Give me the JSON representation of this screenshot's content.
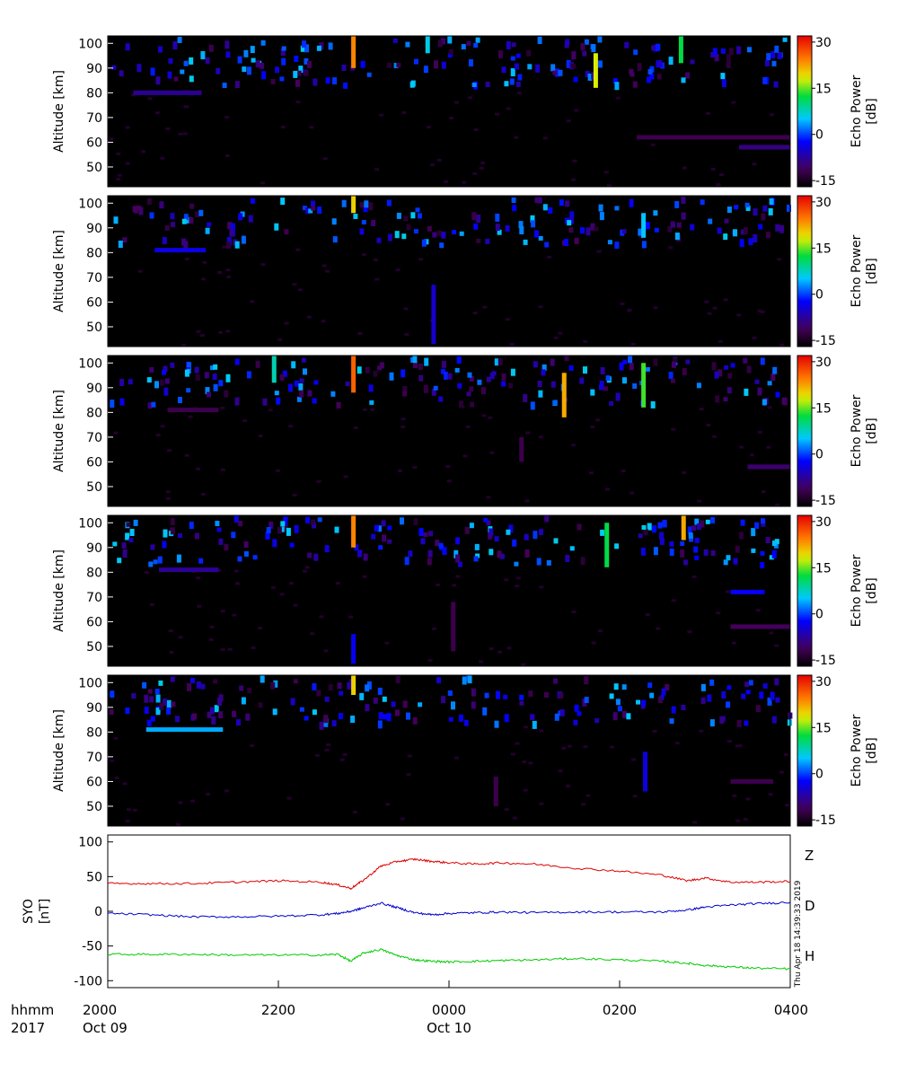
{
  "chart_data": {
    "type": "heatmap",
    "panels": [
      {
        "ylabel": "Altitude [km]",
        "yticks": [
          "100",
          "90",
          "80",
          "70",
          "60",
          "50"
        ],
        "ytick_values": [
          100,
          90,
          80,
          70,
          60,
          50
        ],
        "ylim": [
          42,
          103
        ],
        "colorbar_label": [
          "Echo Power",
          "[dB]"
        ],
        "colorbar_ticks": [
          "30",
          "15",
          "0",
          "-15"
        ],
        "colorbar_values": [
          30,
          15,
          0,
          -15
        ],
        "clim": [
          -17,
          32
        ],
        "layers": [
          {
            "alt": 80,
            "t0": 0.3,
            "t1": 1.1,
            "level": -8
          },
          {
            "alt": 62,
            "t0": 6.2,
            "t1": 8.0,
            "level": -12
          },
          {
            "alt": 58,
            "t0": 7.4,
            "t1": 8.0,
            "level": -9
          }
        ],
        "columns": [
          {
            "t": 2.88,
            "a0": 90,
            "a1": 103,
            "level": 24
          },
          {
            "t": 3.75,
            "a0": 96,
            "a1": 103,
            "level": 6
          },
          {
            "t": 5.72,
            "a0": 82,
            "a1": 96,
            "level": 18
          },
          {
            "t": 6.72,
            "a0": 92,
            "a1": 103,
            "level": 12
          }
        ]
      },
      {
        "ylabel": "Altitude [km]",
        "yticks": [
          "100",
          "90",
          "80",
          "70",
          "60",
          "50"
        ],
        "ytick_values": [
          100,
          90,
          80,
          70,
          60,
          50
        ],
        "ylim": [
          42,
          103
        ],
        "colorbar_label": [
          "Echo Power",
          "[dB]"
        ],
        "colorbar_ticks": [
          "30",
          "15",
          "0",
          "-15"
        ],
        "colorbar_values": [
          30,
          15,
          0,
          -15
        ],
        "clim": [
          -17,
          32
        ],
        "layers": [
          {
            "alt": 81,
            "t0": 0.55,
            "t1": 1.15,
            "level": -4
          }
        ],
        "columns": [
          {
            "t": 3.82,
            "a0": 43,
            "a1": 67,
            "level": -5
          },
          {
            "t": 2.88,
            "a0": 96,
            "a1": 103,
            "level": 20
          },
          {
            "t": 6.28,
            "a0": 86,
            "a1": 96,
            "level": 5
          }
        ]
      },
      {
        "ylabel": "Altitude [km]",
        "yticks": [
          "100",
          "90",
          "80",
          "70",
          "60",
          "50"
        ],
        "ytick_values": [
          100,
          90,
          80,
          70,
          60,
          50
        ],
        "ylim": [
          42,
          103
        ],
        "colorbar_label": [
          "Echo Power",
          "[dB]"
        ],
        "colorbar_ticks": [
          "30",
          "15",
          "0",
          "-15"
        ],
        "colorbar_values": [
          30,
          15,
          0,
          -15
        ],
        "clim": [
          -17,
          32
        ],
        "layers": [
          {
            "alt": 81,
            "t0": 0.7,
            "t1": 1.3,
            "level": -12
          },
          {
            "alt": 58,
            "t0": 7.5,
            "t1": 8.0,
            "level": -10
          }
        ],
        "columns": [
          {
            "t": 2.88,
            "a0": 88,
            "a1": 103,
            "level": 26
          },
          {
            "t": 5.35,
            "a0": 78,
            "a1": 96,
            "level": 22
          },
          {
            "t": 4.85,
            "a0": 60,
            "a1": 70,
            "level": -12
          },
          {
            "t": 6.28,
            "a0": 82,
            "a1": 100,
            "level": 14
          },
          {
            "t": 1.95,
            "a0": 92,
            "a1": 103,
            "level": 8
          }
        ]
      },
      {
        "ylabel": "Altitude [km]",
        "yticks": [
          "100",
          "90",
          "80",
          "70",
          "60",
          "50"
        ],
        "ytick_values": [
          100,
          90,
          80,
          70,
          60,
          50
        ],
        "ylim": [
          42,
          103
        ],
        "colorbar_label": [
          "Echo Power",
          "[dB]"
        ],
        "colorbar_ticks": [
          "30",
          "15",
          "0",
          "-15"
        ],
        "colorbar_values": [
          30,
          15,
          0,
          -15
        ],
        "clim": [
          -17,
          32
        ],
        "layers": [
          {
            "alt": 81,
            "t0": 0.6,
            "t1": 1.3,
            "level": -8
          },
          {
            "alt": 72,
            "t0": 7.3,
            "t1": 7.7,
            "level": -3
          },
          {
            "alt": 58,
            "t0": 7.3,
            "t1": 8.0,
            "level": -11
          }
        ],
        "columns": [
          {
            "t": 2.88,
            "a0": 90,
            "a1": 103,
            "level": 24
          },
          {
            "t": 2.88,
            "a0": 43,
            "a1": 55,
            "level": -3
          },
          {
            "t": 6.75,
            "a0": 93,
            "a1": 103,
            "level": 22
          },
          {
            "t": 5.85,
            "a0": 82,
            "a1": 100,
            "level": 12
          },
          {
            "t": 4.05,
            "a0": 48,
            "a1": 68,
            "level": -12
          }
        ]
      },
      {
        "ylabel": "Altitude [km]",
        "yticks": [
          "100",
          "90",
          "80",
          "70",
          "60",
          "50"
        ],
        "ytick_values": [
          100,
          90,
          80,
          70,
          60,
          50
        ],
        "ylim": [
          42,
          103
        ],
        "colorbar_label": [
          "Echo Power",
          "[dB]"
        ],
        "colorbar_ticks": [
          "30",
          "15",
          "0",
          "-15"
        ],
        "colorbar_values": [
          30,
          15,
          0,
          -15
        ],
        "clim": [
          -17,
          32
        ],
        "layers": [
          {
            "alt": 81,
            "t0": 0.45,
            "t1": 1.35,
            "level": 4
          },
          {
            "alt": 60,
            "t0": 7.3,
            "t1": 7.8,
            "level": -12
          }
        ],
        "columns": [
          {
            "t": 6.3,
            "a0": 56,
            "a1": 72,
            "level": -4
          },
          {
            "t": 2.88,
            "a0": 95,
            "a1": 103,
            "level": 20
          },
          {
            "t": 4.55,
            "a0": 50,
            "a1": 62,
            "level": -12
          }
        ]
      }
    ],
    "magnetometer": {
      "ylabel": [
        "SYO",
        "[nT]"
      ],
      "yticks": [
        "100",
        "50",
        "0",
        "-50",
        "-100"
      ],
      "ytick_values": [
        100,
        50,
        0,
        -50,
        -100
      ],
      "ylim": [
        -110,
        110
      ],
      "series": [
        {
          "name": "Z",
          "color": "#dd0000",
          "t": [
            0,
            0.5,
            1,
            1.5,
            2,
            2.5,
            2.7,
            2.85,
            3.0,
            3.2,
            3.4,
            3.6,
            3.8,
            4.0,
            4.3,
            4.6,
            5.0,
            5.5,
            6.0,
            6.5,
            6.8,
            7.0,
            7.3,
            7.6,
            8.0
          ],
          "values": [
            40,
            40,
            40,
            42,
            44,
            42,
            38,
            33,
            45,
            65,
            72,
            75,
            72,
            70,
            68,
            70,
            68,
            62,
            58,
            52,
            44,
            48,
            42,
            42,
            43
          ]
        },
        {
          "name": "D",
          "color": "#00cc00",
          "t": [
            0,
            0.5,
            1,
            1.5,
            2,
            2.5,
            2.7,
            2.85,
            3.0,
            3.2,
            3.4,
            3.6,
            3.8,
            4.0,
            4.3,
            4.6,
            5.0,
            5.5,
            6.0,
            6.5,
            6.8,
            7.0,
            7.3,
            7.6,
            8.0
          ],
          "values": [
            -62,
            -62,
            -62,
            -63,
            -63,
            -63,
            -62,
            -72,
            -60,
            -55,
            -64,
            -70,
            -72,
            -73,
            -72,
            -71,
            -70,
            -68,
            -70,
            -72,
            -75,
            -78,
            -80,
            -82,
            -83
          ]
        },
        {
          "name": "H",
          "color": "#0000cc",
          "t": [
            0,
            0.5,
            1,
            1.5,
            2,
            2.5,
            2.7,
            2.85,
            3.0,
            3.2,
            3.4,
            3.6,
            3.8,
            4.0,
            4.3,
            4.6,
            5.0,
            5.5,
            6.0,
            6.5,
            6.8,
            7.0,
            7.3,
            7.6,
            8.0
          ],
          "values": [
            -3,
            -5,
            -8,
            -8,
            -7,
            -5,
            -3,
            0,
            5,
            12,
            5,
            -2,
            -5,
            -3,
            -2,
            -1,
            -2,
            -1,
            -1,
            -1,
            2,
            6,
            9,
            11,
            13
          ]
        }
      ],
      "stamp": "Thu Apr 18 14:39:33 2019"
    },
    "xaxis": {
      "label_top": "hhmm",
      "label_bottom": "2017",
      "xlim": [
        0,
        8
      ],
      "ticks": [
        {
          "t": 0,
          "label": "2000",
          "date": "Oct 09"
        },
        {
          "t": 2,
          "label": "2200",
          "date": ""
        },
        {
          "t": 4,
          "label": "0000",
          "date": "Oct 10"
        },
        {
          "t": 6,
          "label": "0200",
          "date": ""
        },
        {
          "t": 8,
          "label": "0400",
          "date": ""
        }
      ]
    },
    "colors": {
      "background": "#000000",
      "frame": "#000000"
    }
  }
}
